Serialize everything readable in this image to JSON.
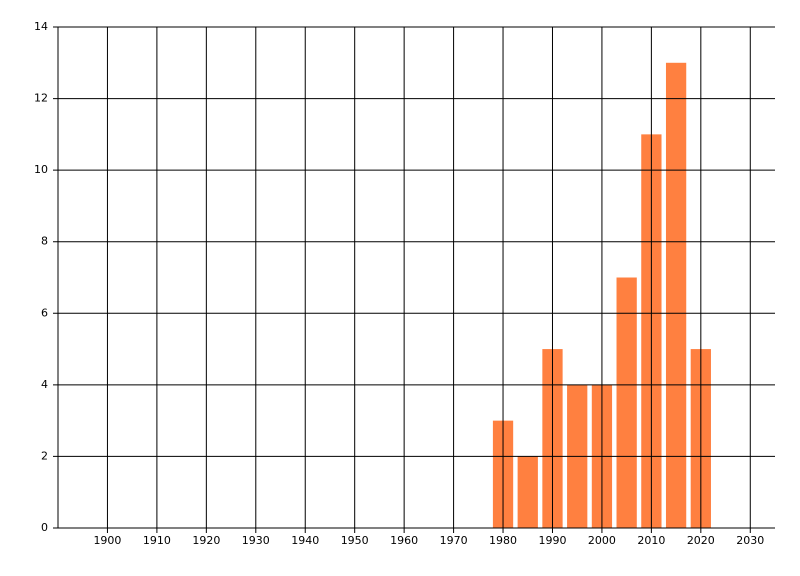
{
  "chart_data": {
    "type": "bar",
    "x": [
      1980,
      1985,
      1990,
      1995,
      2000,
      2005,
      2010,
      2015,
      2020
    ],
    "values": [
      3,
      2,
      5,
      4,
      4,
      7,
      11,
      13,
      5
    ],
    "color": "#ff8040",
    "xlim": [
      1890,
      2035
    ],
    "xticks": [
      1900,
      1910,
      1920,
      1930,
      1940,
      1950,
      1960,
      1970,
      1980,
      1990,
      2000,
      2010,
      2020,
      2030
    ],
    "ylim": [
      0,
      14
    ],
    "yticks": [
      0,
      2,
      4,
      6,
      8,
      10,
      12,
      14
    ],
    "grid": true
  }
}
